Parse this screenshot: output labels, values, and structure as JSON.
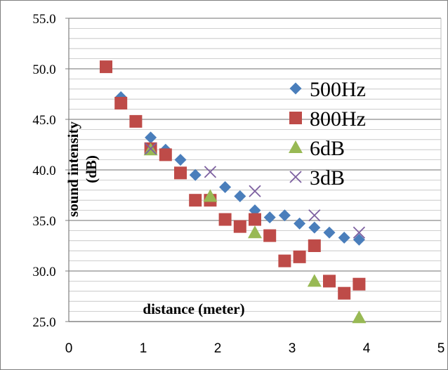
{
  "chart_data": {
    "type": "scatter",
    "title": "",
    "xlabel": "distance (meter)",
    "ylabel": "sound intensity (dB)",
    "ylabel_lines": [
      "sound intensity",
      "(dB)"
    ],
    "xlim": [
      0,
      5
    ],
    "ylim": [
      25,
      55
    ],
    "x_ticks": [
      "0",
      "1",
      "2",
      "3",
      "4",
      "5"
    ],
    "y_ticks": [
      "25.0",
      "30.0",
      "35.0",
      "40.0",
      "45.0",
      "50.0",
      "55.0"
    ],
    "grid": "horizontal",
    "legend_position": "right",
    "series": [
      {
        "name": "500Hz",
        "marker": "diamond",
        "color": "#4a7ebb",
        "points": [
          [
            0.7,
            47.2
          ],
          [
            1.1,
            43.2
          ],
          [
            1.3,
            42.0
          ],
          [
            1.5,
            41.0
          ],
          [
            1.7,
            39.5
          ],
          [
            2.1,
            38.3
          ],
          [
            2.3,
            37.4
          ],
          [
            2.5,
            36.0
          ],
          [
            2.7,
            35.3
          ],
          [
            2.9,
            35.5
          ],
          [
            3.1,
            34.7
          ],
          [
            3.3,
            34.3
          ],
          [
            3.5,
            33.8
          ],
          [
            3.7,
            33.3
          ],
          [
            3.9,
            33.1
          ]
        ]
      },
      {
        "name": "800Hz",
        "marker": "square",
        "color": "#be4b48",
        "points": [
          [
            0.5,
            50.2
          ],
          [
            0.7,
            46.6
          ],
          [
            0.9,
            44.8
          ],
          [
            1.1,
            42.1
          ],
          [
            1.3,
            41.5
          ],
          [
            1.5,
            39.7
          ],
          [
            1.7,
            37.0
          ],
          [
            1.9,
            37.0
          ],
          [
            2.1,
            35.1
          ],
          [
            2.3,
            34.4
          ],
          [
            2.5,
            35.1
          ],
          [
            2.7,
            33.5
          ],
          [
            2.9,
            31.0
          ],
          [
            3.1,
            31.4
          ],
          [
            3.3,
            32.5
          ],
          [
            3.5,
            29.0
          ],
          [
            3.7,
            27.8
          ],
          [
            3.9,
            28.7
          ]
        ]
      },
      {
        "name": "6dB",
        "marker": "triangle",
        "color": "#98b954",
        "points": [
          [
            1.1,
            42.0
          ],
          [
            1.9,
            37.4
          ],
          [
            2.5,
            33.8
          ],
          [
            3.3,
            29.0
          ],
          [
            3.9,
            25.4
          ]
        ]
      },
      {
        "name": "3dB",
        "marker": "x",
        "color": "#7d60a0",
        "points": [
          [
            1.1,
            42.1
          ],
          [
            1.9,
            39.8
          ],
          [
            2.5,
            37.9
          ],
          [
            3.3,
            35.5
          ],
          [
            3.9,
            33.8
          ]
        ]
      }
    ]
  }
}
